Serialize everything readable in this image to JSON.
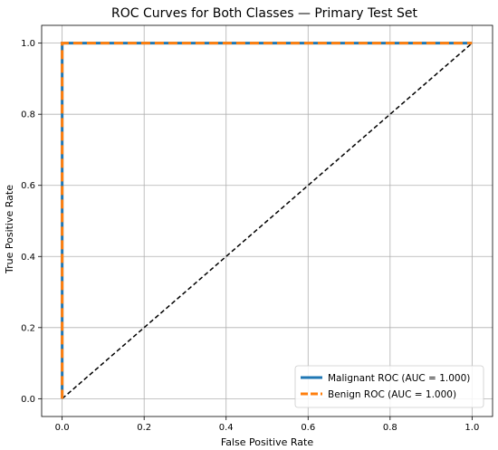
{
  "chart_data": {
    "type": "line",
    "title": "ROC Curves for Both Classes — Primary Test Set",
    "xlabel": "False Positive Rate",
    "ylabel": "True Positive Rate",
    "xlim": [
      -0.05,
      1.05
    ],
    "ylim": [
      -0.05,
      1.05
    ],
    "xticks": [
      0.0,
      0.2,
      0.4,
      0.6,
      0.8,
      1.0
    ],
    "yticks": [
      0.0,
      0.2,
      0.4,
      0.6,
      0.8,
      1.0
    ],
    "xtick_labels": [
      "0.0",
      "0.2",
      "0.4",
      "0.6",
      "0.8",
      "1.0"
    ],
    "ytick_labels": [
      "0.0",
      "0.2",
      "0.4",
      "0.6",
      "0.8",
      "1.0"
    ],
    "grid": true,
    "legend_position": "bottom-right",
    "series": [
      {
        "name": "Malignant ROC (AUC = 1.000)",
        "x": [
          0.0,
          0.0,
          1.0
        ],
        "y": [
          0.0,
          1.0,
          1.0
        ],
        "color": "#1f77b4",
        "style": "solid"
      },
      {
        "name": "Benign ROC (AUC = 1.000)",
        "x": [
          0.0,
          0.0,
          1.0
        ],
        "y": [
          0.0,
          1.0,
          1.0
        ],
        "color": "#ff7f0e",
        "style": "dashed"
      }
    ],
    "reference_line": {
      "x": [
        0.0,
        1.0
      ],
      "y": [
        0.0,
        1.0
      ],
      "color": "#000000",
      "style": "dashed"
    }
  }
}
